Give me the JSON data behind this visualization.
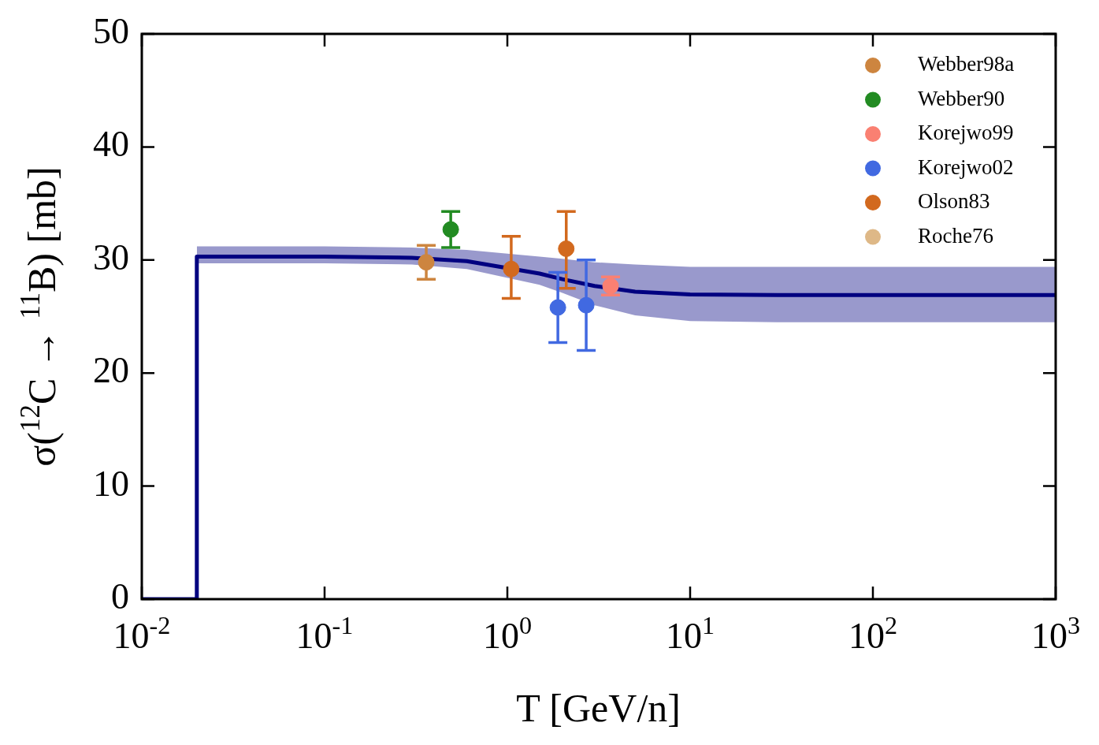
{
  "chart_data": {
    "type": "scatter",
    "xlabel": "T [GeV/n]",
    "ylabel": "σ($^{12}$C → $^{11}$B) [mb]",
    "log": "x",
    "xlim": [
      0.01,
      1000
    ],
    "ylim": [
      0,
      50
    ],
    "xticks": [
      {
        "value": 0.01,
        "label": "10$^{-2}$"
      },
      {
        "value": 0.1,
        "label": "10$^{-1}$"
      },
      {
        "value": 1,
        "label": "10$^{0}$"
      },
      {
        "value": 10,
        "label": "10$^{1}$"
      },
      {
        "value": 100,
        "label": "10$^{2}$"
      },
      {
        "value": 1000,
        "label": "10$^{3}$"
      }
    ],
    "yticks": [
      0,
      10,
      20,
      30,
      40,
      50
    ],
    "legend": "top right",
    "series": [
      {
        "type": "line",
        "color": "#000080",
        "x": [
          0.01,
          0.02,
          0.02,
          0.1,
          0.3,
          0.6,
          1.5,
          2,
          3,
          5,
          10,
          30,
          1000
        ],
        "values": [
          0,
          0,
          30.3,
          30.3,
          30.2,
          29.9,
          28.8,
          28.3,
          27.7,
          27.2,
          26.95,
          26.9,
          26.9
        ],
        "lower": [
          null,
          null,
          29.7,
          29.7,
          29.6,
          29.2,
          27.8,
          27.1,
          26.0,
          25.1,
          24.6,
          24.5,
          24.5
        ],
        "upper": [
          null,
          null,
          31.2,
          31.2,
          31.1,
          30.9,
          30.3,
          30.1,
          29.8,
          29.6,
          29.4,
          29.4,
          29.4
        ]
      },
      {
        "name": "Webber98a",
        "marker": "circle",
        "color": "#cd853f",
        "x": [
          0.36
        ],
        "values": [
          29.8
        ],
        "errors": [
          1.5
        ]
      },
      {
        "name": "Webber90",
        "marker": "circle",
        "color": "#228b22",
        "x": [
          0.49
        ],
        "values": [
          32.7
        ],
        "errors": [
          1.6
        ]
      },
      {
        "name": "Korejwo99",
        "marker": "circle",
        "color": "#fa8072",
        "x": [
          3.67
        ],
        "values": [
          27.7
        ],
        "errors": [
          0.8
        ]
      },
      {
        "name": "Korejwo02",
        "marker": "circle",
        "color": "#4169e1",
        "x": [
          1.89,
          2.7
        ],
        "values": [
          25.8,
          26.0
        ],
        "errors": [
          3.1,
          4.0
        ]
      },
      {
        "name": "Olson83",
        "marker": "circle",
        "color": "#d2691e",
        "x": [
          1.05,
          2.1
        ],
        "values": [
          29.2,
          31.0
        ],
        "errors": [
          [
            26.6,
            32.1
          ],
          [
            27.5,
            34.3
          ]
        ]
      },
      {
        "name": "Roche76",
        "marker": "circle",
        "color": "#deb887"
      }
    ]
  }
}
